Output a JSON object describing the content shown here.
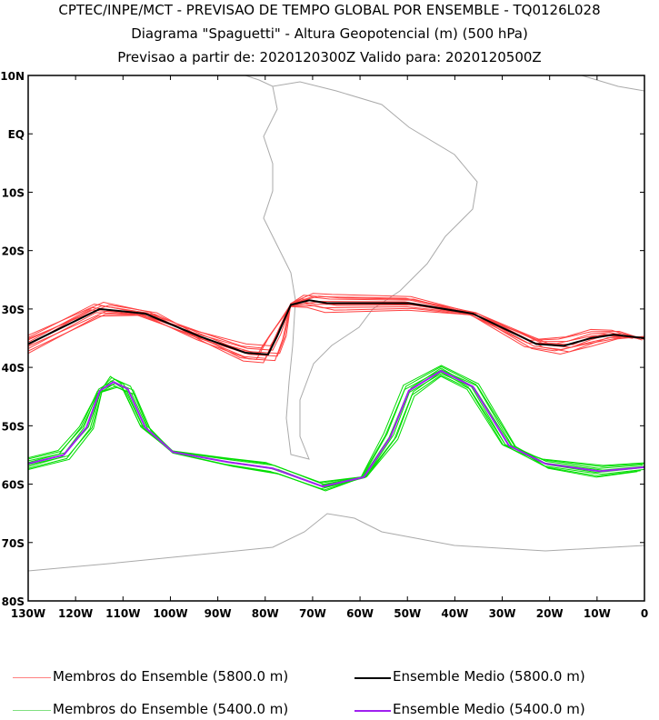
{
  "chart_data": {
    "type": "line",
    "title": "CPTEC/INPE/MCT - PREVISAO DE TEMPO GLOBAL POR ENSEMBLE - TQ0126L028",
    "subtitle": "Diagrama \"Spaguetti\" - Altura Geopotencial (m) (500 hPa)",
    "dates": "Previsao a partir de: 2020120300Z  Valido para: 2020120500Z",
    "xlim": [
      -130,
      0
    ],
    "ylim": [
      -80,
      10
    ],
    "x_ticks": [
      -130,
      -120,
      -110,
      -100,
      -90,
      -80,
      -70,
      -60,
      -50,
      -40,
      -30,
      -20,
      -10,
      0
    ],
    "x_tick_labels": [
      "130W",
      "120W",
      "110W",
      "100W",
      "90W",
      "80W",
      "70W",
      "60W",
      "50W",
      "40W",
      "30W",
      "20W",
      "10W",
      "0"
    ],
    "y_ticks": [
      10,
      0,
      -10,
      -20,
      -30,
      -40,
      -50,
      -60,
      -70,
      -80
    ],
    "y_tick_labels": [
      "10N",
      "EQ",
      "10S",
      "20S",
      "30S",
      "40S",
      "50S",
      "60S",
      "70S",
      "80S"
    ],
    "series": [
      {
        "name": "Ensemble Medio (5800.0 m)",
        "color": "#000000",
        "lon": [
          -130,
          -114.9,
          -105.3,
          -93.8,
          -84.2,
          -79.4,
          -77.5,
          -74.6,
          -70.7,
          -66.9,
          -49.7,
          -36.2,
          -22.8,
          -17,
          -11.3,
          -6.5,
          0
        ],
        "lat": [
          -36,
          -30,
          -30.8,
          -34.7,
          -37.5,
          -37.8,
          -34.7,
          -29.3,
          -28.5,
          -29,
          -29,
          -30.8,
          -36,
          -36.3,
          -35,
          -34.4,
          -35
        ]
      },
      {
        "name": "Ensemble Medio (5400.0 m)",
        "color": "#a020f0",
        "lon": [
          -130,
          -122.5,
          -117.7,
          -114.9,
          -112,
          -109,
          -105.3,
          -99.5,
          -88,
          -78.4,
          -67.9,
          -59.2,
          -53.5,
          -49.7,
          -42.9,
          -36.2,
          -28.6,
          -20.9,
          -9.4,
          0
        ],
        "lat": [
          -56.5,
          -55,
          -50.3,
          -44,
          -42.5,
          -43.7,
          -50.3,
          -54.5,
          -56.2,
          -57.3,
          -60.4,
          -58.8,
          -51.8,
          -44,
          -40.6,
          -43.3,
          -53.4,
          -56.5,
          -57.8,
          -57.1
        ]
      }
    ],
    "members": {
      "5800": {
        "name": "Membros do Ensemble (5800.0 m)",
        "color": "#ff4040",
        "lat_offsets": [
          -1.2,
          -0.8,
          -0.4,
          0.3,
          0.7,
          1.1,
          1.5,
          -1.6,
          0.9,
          -0.2
        ],
        "lon_shifts": [
          1.5,
          -1,
          2,
          -2,
          0.5,
          -1.5,
          1,
          -0.5,
          2.5,
          -2.5
        ]
      },
      "5400": {
        "name": "Membros do Ensemble (5400.0 m)",
        "color": "#00dd00",
        "lat_offsets": [
          -0.8,
          -0.5,
          -0.2,
          0.2,
          0.5,
          0.8,
          -1,
          1
        ],
        "lon_shifts": [
          0.8,
          -0.6,
          1.2,
          -1.2,
          0.4,
          -0.8,
          1.5,
          -1.5
        ]
      }
    },
    "legend": [
      "Membros do Ensemble (5800.0 m)",
      "Ensemble Medio (5800.0 m)",
      "Membros do Ensemble (5400.0 m)",
      "Ensemble Medio (5400.0 m)"
    ],
    "legend_position": "bottom"
  }
}
